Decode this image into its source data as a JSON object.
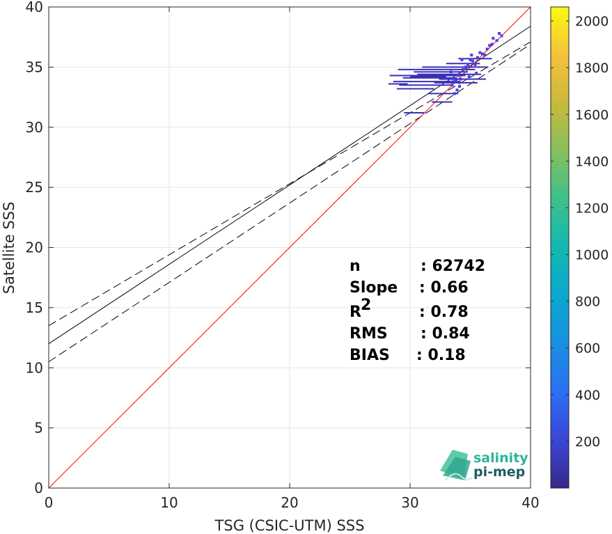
{
  "chart_data": {
    "type": "scatter",
    "title": "",
    "xlabel": "TSG (CSIC-UTM) SSS",
    "ylabel": "Satellite SSS",
    "xlim": [
      0,
      40
    ],
    "ylim": [
      0,
      40
    ],
    "x_ticks": [
      "0",
      "10",
      "20",
      "30",
      "40"
    ],
    "y_ticks": [
      "0",
      "5",
      "10",
      "15",
      "20",
      "25",
      "30",
      "35",
      "40"
    ],
    "grid": true,
    "identity_line": {
      "slope": 1,
      "intercept": 0,
      "color": "#ff0000"
    },
    "fit_line": {
      "slope": 0.66,
      "intercept": 12.0,
      "color": "#000000"
    },
    "fit_bounds": [
      {
        "slope": 0.59,
        "intercept": 13.5
      },
      {
        "slope": 0.66,
        "intercept": 10.5
      }
    ],
    "points": [
      {
        "x": 33.6,
        "y": 34.0
      },
      {
        "x": 34.0,
        "y": 34.3
      },
      {
        "x": 34.4,
        "y": 34.8
      },
      {
        "x": 34.8,
        "y": 35.2
      },
      {
        "x": 35.2,
        "y": 35.5
      },
      {
        "x": 35.6,
        "y": 35.8
      },
      {
        "x": 36.0,
        "y": 36.1
      },
      {
        "x": 36.4,
        "y": 36.5
      },
      {
        "x": 36.8,
        "y": 36.9
      },
      {
        "x": 37.2,
        "y": 37.2
      },
      {
        "x": 37.6,
        "y": 37.6
      },
      {
        "x": 33.5,
        "y": 33.5
      },
      {
        "x": 33.8,
        "y": 33.9
      },
      {
        "x": 34.2,
        "y": 34.0
      },
      {
        "x": 34.6,
        "y": 35.0
      },
      {
        "x": 35.0,
        "y": 35.6
      },
      {
        "x": 35.4,
        "y": 35.2
      },
      {
        "x": 35.8,
        "y": 36.2
      },
      {
        "x": 36.2,
        "y": 36.0
      },
      {
        "x": 36.6,
        "y": 36.8
      },
      {
        "x": 33.7,
        "y": 32.8
      },
      {
        "x": 34.1,
        "y": 33.4
      },
      {
        "x": 34.9,
        "y": 34.2
      },
      {
        "x": 35.5,
        "y": 34.5
      },
      {
        "x": 33.4,
        "y": 34.6
      },
      {
        "x": 34.3,
        "y": 35.6
      },
      {
        "x": 35.1,
        "y": 36.0
      },
      {
        "x": 36.9,
        "y": 37.4
      },
      {
        "x": 37.4,
        "y": 37.8
      },
      {
        "x": 33.9,
        "y": 33.1
      }
    ],
    "segments": [
      {
        "x0": 28.3,
        "x1": 34.6,
        "y": 34.3
      },
      {
        "x0": 28.6,
        "x1": 34.2,
        "y": 33.8
      },
      {
        "x0": 29.0,
        "x1": 35.4,
        "y": 34.8
      },
      {
        "x0": 29.4,
        "x1": 33.9,
        "y": 34.1
      },
      {
        "x0": 29.1,
        "x1": 33.6,
        "y": 33.5
      },
      {
        "x0": 28.9,
        "x1": 32.0,
        "y": 33.2
      },
      {
        "x0": 30.3,
        "x1": 34.8,
        "y": 34.6
      },
      {
        "x0": 31.0,
        "x1": 36.5,
        "y": 35.0
      },
      {
        "x0": 30.6,
        "x1": 35.9,
        "y": 34.4
      },
      {
        "x0": 32.4,
        "x1": 36.3,
        "y": 34.0
      },
      {
        "x0": 31.5,
        "x1": 34.0,
        "y": 32.8
      },
      {
        "x0": 31.8,
        "x1": 33.5,
        "y": 32.1
      },
      {
        "x0": 29.5,
        "x1": 31.2,
        "y": 31.2
      },
      {
        "x0": 30.0,
        "x1": 33.0,
        "y": 34.2
      },
      {
        "x0": 32.0,
        "x1": 35.6,
        "y": 33.7
      },
      {
        "x0": 28.2,
        "x1": 29.8,
        "y": 33.6
      },
      {
        "x0": 33.0,
        "x1": 35.8,
        "y": 35.3
      },
      {
        "x0": 34.0,
        "x1": 36.8,
        "y": 35.7
      }
    ],
    "colorbar": {
      "min": 0,
      "max": 2060,
      "ticks": [
        "200",
        "400",
        "600",
        "800",
        "1000",
        "1200",
        "1400",
        "1600",
        "1800",
        "2000"
      ],
      "colormap": "parula"
    },
    "annotations": {
      "stats": [
        {
          "label": "n",
          "value": ": 62742"
        },
        {
          "label": "Slope",
          "value": ": 0.66"
        },
        {
          "label": "R",
          "sup": "2",
          "value": ": 0.78"
        },
        {
          "label": "RMS",
          "value": ": 0.84"
        },
        {
          "label": "BIAS",
          "value": ": 0.18"
        }
      ]
    }
  },
  "logo": {
    "line1": "salinity",
    "line2": "pi-mep"
  }
}
